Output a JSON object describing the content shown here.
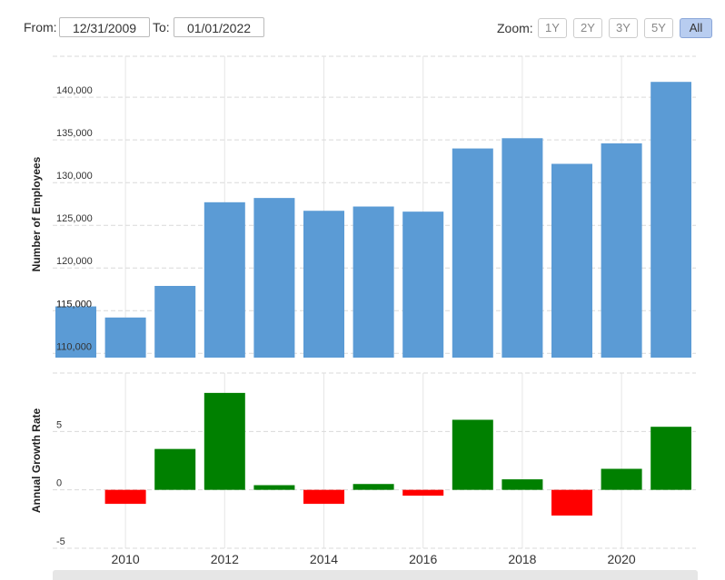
{
  "toolbar": {
    "from_label": "From:",
    "from_value": "12/31/2009",
    "to_label": "To:",
    "to_value": "01/01/2022",
    "zoom_label": "Zoom:",
    "zoom_buttons": [
      "1Y",
      "2Y",
      "3Y",
      "5Y",
      "All"
    ],
    "zoom_active": "All"
  },
  "colors": {
    "employees_bar": "#5b9bd5",
    "growth_positive": "#008000",
    "growth_negative": "#ff0000",
    "grid": "#d9d9d9"
  },
  "chart_data": [
    {
      "type": "bar",
      "ylabel": "Number of Employees",
      "x": [
        2009,
        2010,
        2011,
        2012,
        2013,
        2014,
        2015,
        2016,
        2017,
        2018,
        2019,
        2020,
        2021
      ],
      "values": [
        115500,
        114200,
        117900,
        127700,
        128200,
        126700,
        127200,
        126600,
        134000,
        135200,
        132200,
        134600,
        141800
      ],
      "y_ticks": [
        "110,000",
        "115,000",
        "120,000",
        "125,000",
        "130,000",
        "135,000",
        "140,000"
      ],
      "y_tick_values": [
        110000,
        115000,
        120000,
        125000,
        130000,
        135000,
        140000
      ],
      "ylim": [
        109500,
        144800
      ],
      "grid": true
    },
    {
      "type": "bar",
      "ylabel": "Annual Growth Rate",
      "x": [
        2009,
        2010,
        2011,
        2012,
        2013,
        2014,
        2015,
        2016,
        2017,
        2018,
        2019,
        2020,
        2021
      ],
      "values": [
        0,
        -1.2,
        3.5,
        8.3,
        0.4,
        -1.2,
        0.5,
        -0.5,
        6.0,
        0.9,
        -2.2,
        1.8,
        5.4
      ],
      "y_ticks": [
        "-5",
        "0",
        "5"
      ],
      "y_tick_values": [
        -5,
        0,
        5
      ],
      "ylim": [
        -5,
        10
      ],
      "x_ticks": [
        "2010",
        "2012",
        "2014",
        "2016",
        "2018",
        "2020"
      ],
      "x_tick_values": [
        2010,
        2012,
        2014,
        2016,
        2018,
        2020
      ],
      "grid": true
    }
  ]
}
